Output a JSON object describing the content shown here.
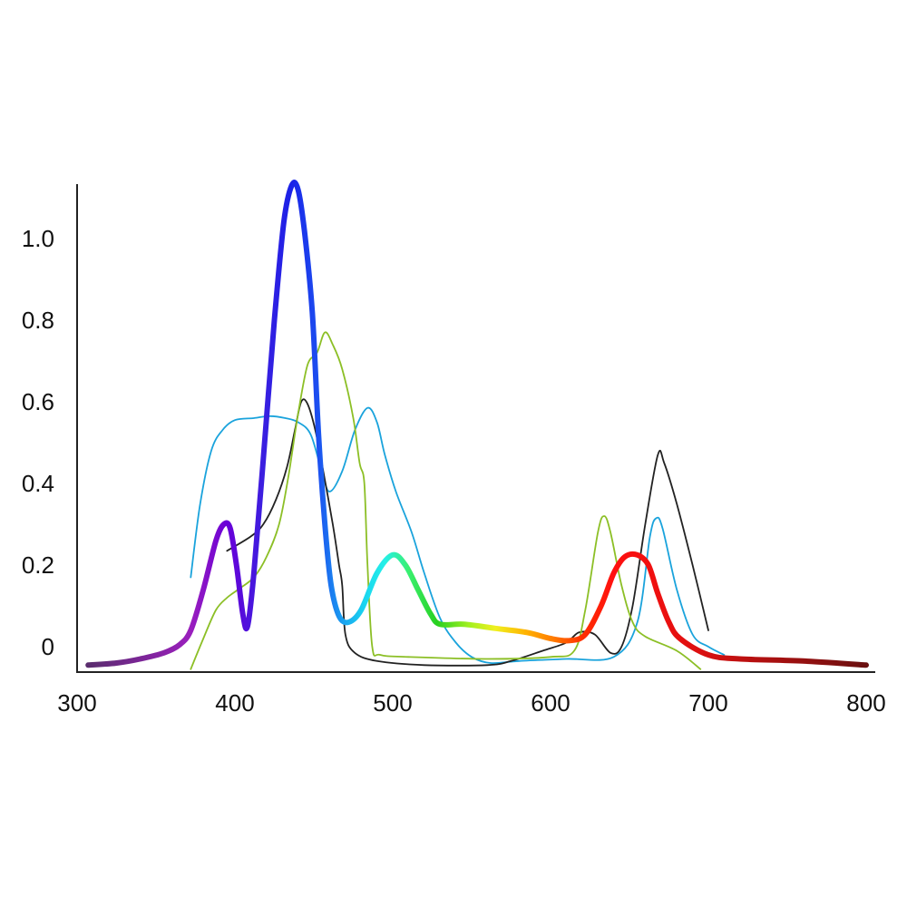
{
  "chart_data": {
    "type": "line",
    "title": "",
    "xlabel": "",
    "ylabel": "",
    "xlim": [
      300,
      800
    ],
    "ylim": [
      -0.06,
      1.14
    ],
    "x_ticks": [
      {
        "value": 300,
        "label": "300"
      },
      {
        "value": 400,
        "label": "400"
      },
      {
        "value": 500,
        "label": "500"
      },
      {
        "value": 600,
        "label": "600"
      },
      {
        "value": 700,
        "label": "700"
      },
      {
        "value": 800,
        "label": "800"
      }
    ],
    "y_ticks": [
      {
        "value": 0,
        "label": "0"
      },
      {
        "value": 0.2,
        "label": "0.2"
      },
      {
        "value": 0.4,
        "label": "0.4"
      },
      {
        "value": 0.6,
        "label": "0.6"
      },
      {
        "value": 0.8,
        "label": "0.8"
      },
      {
        "value": 1.0,
        "label": "1.0"
      }
    ],
    "grid": false,
    "legend": "none",
    "series": [
      {
        "color": "#1aa3dc",
        "width": "thin",
        "points": [
          [
            372,
            0.17
          ],
          [
            378,
            0.35
          ],
          [
            385,
            0.48
          ],
          [
            392,
            0.53
          ],
          [
            400,
            0.555
          ],
          [
            412,
            0.56
          ],
          [
            422,
            0.565
          ],
          [
            432,
            0.56
          ],
          [
            440,
            0.55
          ],
          [
            448,
            0.52
          ],
          [
            455,
            0.43
          ],
          [
            460,
            0.38
          ],
          [
            468,
            0.43
          ],
          [
            476,
            0.53
          ],
          [
            484,
            0.585
          ],
          [
            490,
            0.55
          ],
          [
            495,
            0.47
          ],
          [
            502,
            0.38
          ],
          [
            512,
            0.28
          ],
          [
            520,
            0.18
          ],
          [
            530,
            0.07
          ],
          [
            540,
            0.01
          ],
          [
            550,
            -0.025
          ],
          [
            562,
            -0.04
          ],
          [
            580,
            -0.035
          ],
          [
            610,
            -0.03
          ],
          [
            640,
            -0.025
          ],
          [
            655,
            0.06
          ],
          [
            663,
            0.27
          ],
          [
            667,
            0.315
          ],
          [
            671,
            0.29
          ],
          [
            680,
            0.14
          ],
          [
            690,
            0.03
          ],
          [
            700,
            0.0
          ],
          [
            710,
            -0.02
          ]
        ]
      },
      {
        "color": "#222222",
        "width": "thin",
        "points": [
          [
            395,
            0.235
          ],
          [
            410,
            0.27
          ],
          [
            418,
            0.3
          ],
          [
            426,
            0.36
          ],
          [
            433,
            0.44
          ],
          [
            438,
            0.53
          ],
          [
            442,
            0.6
          ],
          [
            446,
            0.595
          ],
          [
            451,
            0.53
          ],
          [
            456,
            0.43
          ],
          [
            462,
            0.3
          ],
          [
            466,
            0.2
          ],
          [
            468,
            0.15
          ],
          [
            470,
            0.03
          ],
          [
            476,
            -0.015
          ],
          [
            490,
            -0.035
          ],
          [
            520,
            -0.045
          ],
          [
            560,
            -0.045
          ],
          [
            575,
            -0.035
          ],
          [
            595,
            -0.01
          ],
          [
            610,
            0.01
          ],
          [
            618,
            0.035
          ],
          [
            628,
            0.03
          ],
          [
            638,
            -0.015
          ],
          [
            645,
            0.0
          ],
          [
            652,
            0.1
          ],
          [
            660,
            0.3
          ],
          [
            668,
            0.47
          ],
          [
            672,
            0.45
          ],
          [
            680,
            0.35
          ],
          [
            690,
            0.2
          ],
          [
            700,
            0.04
          ]
        ]
      },
      {
        "color": "#8cbf26",
        "width": "thin",
        "points": [
          [
            372,
            -0.055
          ],
          [
            380,
            0.02
          ],
          [
            388,
            0.09
          ],
          [
            395,
            0.12
          ],
          [
            402,
            0.14
          ],
          [
            412,
            0.17
          ],
          [
            420,
            0.22
          ],
          [
            428,
            0.3
          ],
          [
            434,
            0.42
          ],
          [
            440,
            0.57
          ],
          [
            446,
            0.69
          ],
          [
            452,
            0.72
          ],
          [
            457,
            0.77
          ],
          [
            462,
            0.74
          ],
          [
            468,
            0.68
          ],
          [
            475,
            0.56
          ],
          [
            479,
            0.45
          ],
          [
            482,
            0.4
          ],
          [
            484,
            0.2
          ],
          [
            487,
            0.0
          ],
          [
            492,
            -0.02
          ],
          [
            510,
            -0.025
          ],
          [
            560,
            -0.03
          ],
          [
            600,
            -0.025
          ],
          [
            615,
            -0.01
          ],
          [
            622,
            0.09
          ],
          [
            630,
            0.28
          ],
          [
            634,
            0.32
          ],
          [
            638,
            0.28
          ],
          [
            645,
            0.15
          ],
          [
            652,
            0.06
          ],
          [
            660,
            0.025
          ],
          [
            680,
            -0.01
          ],
          [
            695,
            -0.055
          ]
        ]
      },
      {
        "color": "gradient",
        "width": "thick",
        "points": [
          [
            307,
            -0.045
          ],
          [
            325,
            -0.04
          ],
          [
            340,
            -0.03
          ],
          [
            355,
            -0.015
          ],
          [
            365,
            0.005
          ],
          [
            372,
            0.04
          ],
          [
            380,
            0.14
          ],
          [
            388,
            0.26
          ],
          [
            393,
            0.3
          ],
          [
            397,
            0.29
          ],
          [
            401,
            0.2
          ],
          [
            405,
            0.08
          ],
          [
            408,
            0.05
          ],
          [
            412,
            0.18
          ],
          [
            418,
            0.46
          ],
          [
            425,
            0.8
          ],
          [
            431,
            1.04
          ],
          [
            436,
            1.13
          ],
          [
            440,
            1.12
          ],
          [
            444,
            1.02
          ],
          [
            449,
            0.82
          ],
          [
            453,
            0.52
          ],
          [
            457,
            0.3
          ],
          [
            461,
            0.15
          ],
          [
            466,
            0.075
          ],
          [
            472,
            0.06
          ],
          [
            480,
            0.09
          ],
          [
            490,
            0.18
          ],
          [
            500,
            0.225
          ],
          [
            508,
            0.2
          ],
          [
            516,
            0.14
          ],
          [
            524,
            0.08
          ],
          [
            530,
            0.055
          ],
          [
            545,
            0.055
          ],
          [
            565,
            0.045
          ],
          [
            585,
            0.035
          ],
          [
            600,
            0.02
          ],
          [
            612,
            0.015
          ],
          [
            622,
            0.03
          ],
          [
            632,
            0.1
          ],
          [
            640,
            0.18
          ],
          [
            647,
            0.22
          ],
          [
            655,
            0.225
          ],
          [
            662,
            0.2
          ],
          [
            668,
            0.13
          ],
          [
            675,
            0.06
          ],
          [
            682,
            0.02
          ],
          [
            700,
            -0.02
          ],
          [
            720,
            -0.03
          ],
          [
            760,
            -0.035
          ],
          [
            800,
            -0.045
          ]
        ],
        "gradient_stops": [
          {
            "wavelength": 307,
            "color": "#5a2d6e"
          },
          {
            "wavelength": 372,
            "color": "#9a1fbd"
          },
          {
            "wavelength": 395,
            "color": "#6a00d8"
          },
          {
            "wavelength": 418,
            "color": "#3b1fe0"
          },
          {
            "wavelength": 436,
            "color": "#1a22e8"
          },
          {
            "wavelength": 453,
            "color": "#1c50f0"
          },
          {
            "wavelength": 468,
            "color": "#1aa0f0"
          },
          {
            "wavelength": 482,
            "color": "#19d5f0"
          },
          {
            "wavelength": 495,
            "color": "#25f0e8"
          },
          {
            "wavelength": 510,
            "color": "#3af070"
          },
          {
            "wavelength": 528,
            "color": "#28d020"
          },
          {
            "wavelength": 548,
            "color": "#a0f020"
          },
          {
            "wavelength": 565,
            "color": "#f0f020"
          },
          {
            "wavelength": 585,
            "color": "#ffb000"
          },
          {
            "wavelength": 602,
            "color": "#ff7a00"
          },
          {
            "wavelength": 620,
            "color": "#ff3000"
          },
          {
            "wavelength": 640,
            "color": "#ff1010"
          },
          {
            "wavelength": 690,
            "color": "#e01010"
          },
          {
            "wavelength": 800,
            "color": "#6a1010"
          }
        ]
      }
    ]
  }
}
